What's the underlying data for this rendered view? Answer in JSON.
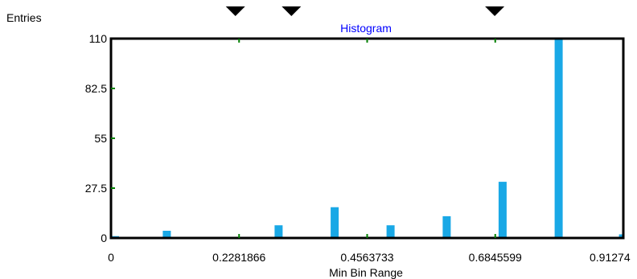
{
  "chart_data": {
    "type": "bar",
    "title": "Histogram",
    "ylabel": "Entries",
    "xlabel": "Min Bin Range",
    "x_ticks": [
      "0",
      "0.2281866",
      "0.4563733",
      "0.6845599",
      "0.91274"
    ],
    "y_ticks": [
      "0",
      "27.5",
      "55",
      "82.5",
      "110"
    ],
    "xlim": [
      0,
      0.91274
    ],
    "ylim": [
      0,
      110
    ],
    "bars": [
      {
        "x": 0.0,
        "value": 1
      },
      {
        "x": 0.0994,
        "value": 4
      },
      {
        "x": 0.2986,
        "value": 7
      },
      {
        "x": 0.3985,
        "value": 17
      },
      {
        "x": 0.4981,
        "value": 7
      },
      {
        "x": 0.5981,
        "value": 12
      },
      {
        "x": 0.6977,
        "value": 31
      },
      {
        "x": 0.7976,
        "value": 110
      },
      {
        "x": 0.9122,
        "value": 2
      }
    ],
    "bar_color": "#19a8e6",
    "tick_color": "#008000",
    "title_color": "#0000ff",
    "markers": [
      {
        "x": 0.2217
      },
      {
        "x": 0.3214
      },
      {
        "x": 0.6836
      }
    ],
    "grid": false
  }
}
